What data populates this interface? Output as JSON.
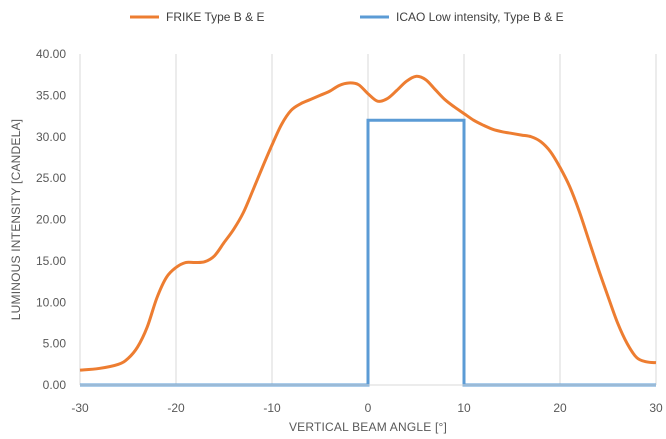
{
  "chart_data": {
    "type": "line",
    "title": "",
    "xlabel": "VERTICAL BEAM ANGLE [°]",
    "ylabel": "LUMINOUS INTENSITY [CANDELA]",
    "xlim": [
      -30,
      30
    ],
    "ylim": [
      0,
      40
    ],
    "x_ticks": [
      -30,
      -20,
      -10,
      0,
      10,
      20,
      30
    ],
    "x_tick_labels": [
      "-30",
      "-20",
      "-10",
      "0",
      "10",
      "20",
      "30"
    ],
    "y_ticks": [
      0,
      5,
      10,
      15,
      20,
      25,
      30,
      35,
      40
    ],
    "y_tick_labels": [
      "0.00",
      "5.00",
      "10.00",
      "15.00",
      "20.00",
      "25.00",
      "30.00",
      "35.00",
      "40.00"
    ],
    "grid": "vertical",
    "legend_position": "top",
    "series": [
      {
        "name": "FRIKE Type B & E",
        "color": "#ED7D31",
        "points": [
          [
            -30,
            1.8
          ],
          [
            -28,
            2.0
          ],
          [
            -26,
            2.5
          ],
          [
            -25,
            3.2
          ],
          [
            -24,
            4.6
          ],
          [
            -23,
            7.0
          ],
          [
            -22,
            10.5
          ],
          [
            -21,
            13.0
          ],
          [
            -20,
            14.2
          ],
          [
            -19,
            14.8
          ],
          [
            -18,
            14.8
          ],
          [
            -17,
            14.9
          ],
          [
            -16,
            15.6
          ],
          [
            -15,
            17.2
          ],
          [
            -14,
            18.8
          ],
          [
            -13,
            20.8
          ],
          [
            -12,
            23.5
          ],
          [
            -11,
            26.3
          ],
          [
            -10,
            29.0
          ],
          [
            -9,
            31.5
          ],
          [
            -8,
            33.2
          ],
          [
            -7,
            34.0
          ],
          [
            -6,
            34.5
          ],
          [
            -5,
            35.0
          ],
          [
            -4,
            35.5
          ],
          [
            -3,
            36.2
          ],
          [
            -2,
            36.5
          ],
          [
            -1,
            36.3
          ],
          [
            0,
            35.2
          ],
          [
            1,
            34.3
          ],
          [
            2,
            34.6
          ],
          [
            3,
            35.6
          ],
          [
            4,
            36.7
          ],
          [
            5,
            37.3
          ],
          [
            6,
            36.9
          ],
          [
            7,
            35.7
          ],
          [
            8,
            34.5
          ],
          [
            9,
            33.6
          ],
          [
            10,
            32.8
          ],
          [
            11,
            32.0
          ],
          [
            12,
            31.4
          ],
          [
            13,
            30.9
          ],
          [
            14,
            30.6
          ],
          [
            15,
            30.4
          ],
          [
            16,
            30.2
          ],
          [
            17,
            30.0
          ],
          [
            18,
            29.4
          ],
          [
            19,
            28.2
          ],
          [
            20,
            26.3
          ],
          [
            21,
            24.0
          ],
          [
            22,
            21.0
          ],
          [
            23,
            17.5
          ],
          [
            24,
            14.0
          ],
          [
            25,
            10.7
          ],
          [
            26,
            7.5
          ],
          [
            27,
            5.0
          ],
          [
            28,
            3.3
          ],
          [
            29,
            2.8
          ],
          [
            30,
            2.7
          ]
        ]
      },
      {
        "name": "ICAO Low intensity, Type B & E",
        "color": "#5B9BD5",
        "points": [
          [
            -30,
            0
          ],
          [
            0,
            0
          ],
          [
            0,
            32
          ],
          [
            10,
            32
          ],
          [
            10,
            0
          ],
          [
            30,
            0
          ]
        ]
      }
    ]
  }
}
